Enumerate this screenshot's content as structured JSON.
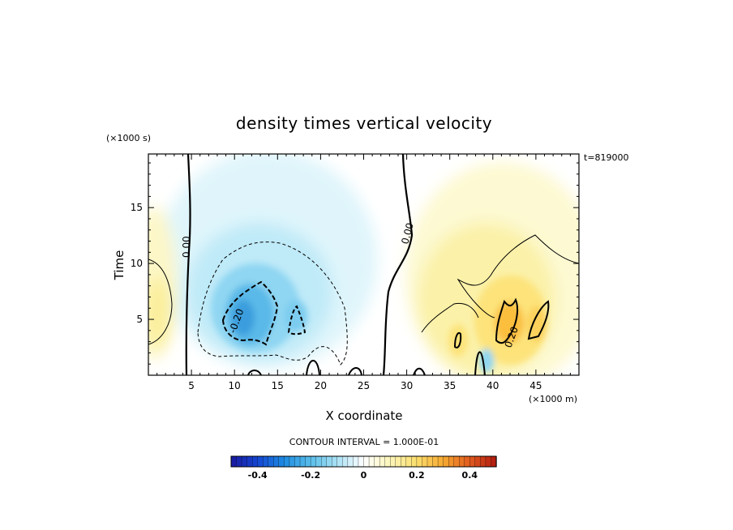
{
  "chart_data": {
    "type": "heatmap",
    "title": "density times vertical velocity",
    "xlabel": "X coordinate",
    "ylabel": "Time",
    "x_unit_label": "(×1000 m)",
    "y_unit_label": "(×1000 s)",
    "time_stamp": "t=819000",
    "xlim": [
      0,
      50
    ],
    "ylim": [
      0,
      19.8
    ],
    "xticks": [
      5,
      10,
      15,
      20,
      25,
      30,
      35,
      40,
      45
    ],
    "yticks": [
      5,
      10,
      15
    ],
    "contour_interval_text": "CONTOUR INTERVAL = 1.000E-01",
    "contour_labels": [
      "0.00",
      "0.00",
      "-0.20",
      "0.20"
    ],
    "colorbar": {
      "range": [
        -0.5,
        0.5
      ],
      "ticks": [
        -0.4,
        -0.2,
        0,
        0.2,
        0.4
      ],
      "tick_labels": [
        "-0.4",
        "-0.2",
        "0",
        "0.2",
        "0.4"
      ],
      "low_color": "#1a1aa0",
      "mid_color": "#ffffff",
      "high_color": "#b01a10"
    },
    "features": [
      {
        "kind": "minimum",
        "x": 12,
        "y": 6,
        "value": -0.3
      },
      {
        "kind": "minimum",
        "x": 17.5,
        "y": 5.5,
        "value": -0.22
      },
      {
        "kind": "maximum",
        "x": 41.5,
        "y": 4.8,
        "value": 0.28
      },
      {
        "kind": "maximum",
        "x": 44.5,
        "y": 6,
        "value": 0.22
      },
      {
        "kind": "maximum",
        "x": 1.5,
        "y": 5,
        "value": 0.12
      },
      {
        "kind": "maximum",
        "x": 35.5,
        "y": 3.5,
        "value": 0.2
      }
    ]
  }
}
